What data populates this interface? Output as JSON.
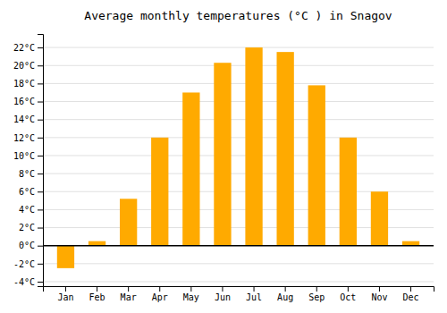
{
  "chart_data": {
    "type": "bar",
    "title": "Average monthly temperatures (°C ) in Snagov",
    "categories": [
      "Jan",
      "Feb",
      "Mar",
      "Apr",
      "May",
      "Jun",
      "Jul",
      "Aug",
      "Sep",
      "Oct",
      "Nov",
      "Dec"
    ],
    "values": [
      -2.5,
      0.5,
      5.2,
      12.0,
      17.0,
      20.3,
      22.0,
      21.5,
      17.8,
      12.0,
      6.0,
      0.5
    ],
    "color": "#FFAA00",
    "ylim": [
      -4.5,
      23.5
    ],
    "yticks": [
      {
        "value": -4,
        "label": "-4°C"
      },
      {
        "value": -2,
        "label": "-2°C"
      },
      {
        "value": 0,
        "label": "0°C"
      },
      {
        "value": 2,
        "label": "2°C"
      },
      {
        "value": 4,
        "label": "4°C"
      },
      {
        "value": 6,
        "label": "6°C"
      },
      {
        "value": 8,
        "label": "8°C"
      },
      {
        "value": 10,
        "label": "10°C"
      },
      {
        "value": 12,
        "label": "12°C"
      },
      {
        "value": 14,
        "label": "14°C"
      },
      {
        "value": 16,
        "label": "16°C"
      },
      {
        "value": 18,
        "label": "18°C"
      },
      {
        "value": 20,
        "label": "20°C"
      },
      {
        "value": 22,
        "label": "22°C"
      }
    ],
    "grid": true
  }
}
